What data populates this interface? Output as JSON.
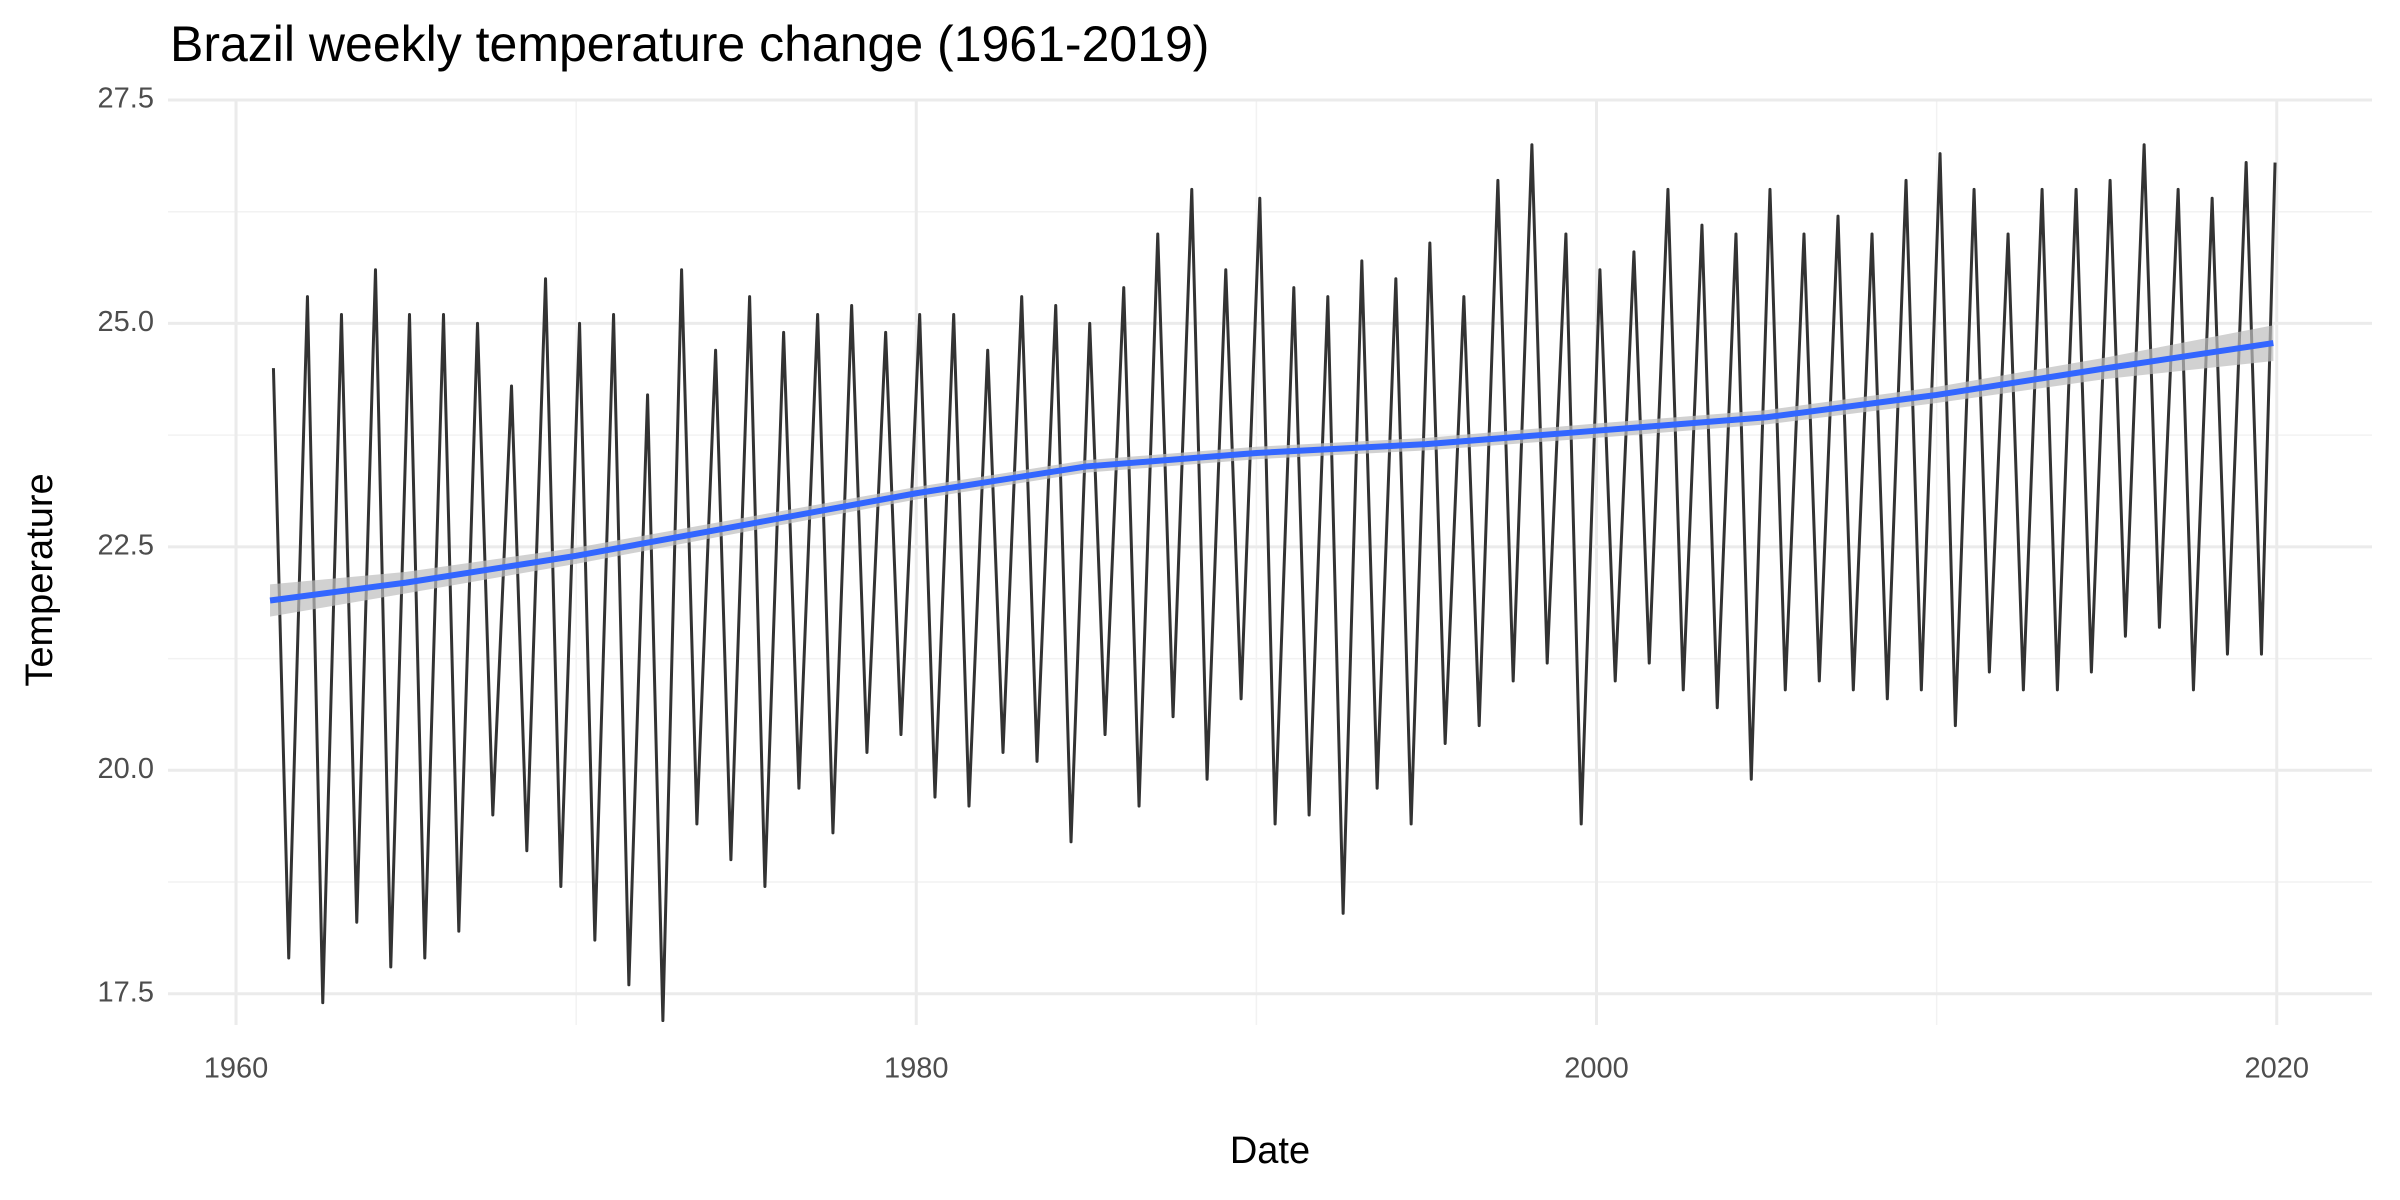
{
  "chart_data": {
    "type": "line",
    "title": "Brazil weekly temperature change (1961-2019)",
    "x_label": "Date",
    "y_label": "Temperature",
    "xlim": [
      1958,
      2022.8
    ],
    "ylim": [
      17.15,
      27.5
    ],
    "xticks": [
      1960,
      1980,
      2000,
      2020
    ],
    "yticks": [
      17.5,
      20.0,
      22.5,
      25.0,
      27.5
    ],
    "xminor": [
      1970,
      1990,
      2010
    ],
    "yminor": [
      18.75,
      21.25,
      23.75,
      26.25
    ],
    "grid": true,
    "series": [
      {
        "color": "#333333",
        "x": [
          1961.1,
          1961.55,
          1962.1,
          1962.55,
          1963.1,
          1963.55,
          1964.1,
          1964.55,
          1965.1,
          1965.55,
          1966.1,
          1966.55,
          1967.1,
          1967.55,
          1968.1,
          1968.55,
          1969.1,
          1969.55,
          1970.1,
          1970.55,
          1971.1,
          1971.55,
          1972.1,
          1972.55,
          1973.1,
          1973.55,
          1974.1,
          1974.55,
          1975.1,
          1975.55,
          1976.1,
          1976.55,
          1977.1,
          1977.55,
          1978.1,
          1978.55,
          1979.1,
          1979.55,
          1980.1,
          1980.55,
          1981.1,
          1981.55,
          1982.1,
          1982.55,
          1983.1,
          1983.55,
          1984.1,
          1984.55,
          1985.1,
          1985.55,
          1986.1,
          1986.55,
          1987.1,
          1987.55,
          1988.1,
          1988.55,
          1989.1,
          1989.55,
          1990.1,
          1990.55,
          1991.1,
          1991.55,
          1992.1,
          1992.55,
          1993.1,
          1993.55,
          1994.1,
          1994.55,
          1995.1,
          1995.55,
          1996.1,
          1996.55,
          1997.1,
          1997.55,
          1998.1,
          1998.55,
          1999.1,
          1999.55,
          2000.1,
          2000.55,
          2001.1,
          2001.55,
          2002.1,
          2002.55,
          2003.1,
          2003.55,
          2004.1,
          2004.55,
          2005.1,
          2005.55,
          2006.1,
          2006.55,
          2007.1,
          2007.55,
          2008.1,
          2008.55,
          2009.1,
          2009.55,
          2010.1,
          2010.55,
          2011.1,
          2011.55,
          2012.1,
          2012.55,
          2013.1,
          2013.55,
          2014.1,
          2014.55,
          2015.1,
          2015.55,
          2016.1,
          2016.55,
          2017.1,
          2017.55,
          2018.1,
          2018.55,
          2019.1,
          2019.55,
          2019.95
        ],
        "values": [
          24.5,
          17.9,
          25.3,
          17.4,
          25.1,
          18.3,
          25.6,
          17.8,
          25.1,
          17.9,
          25.1,
          18.2,
          25.0,
          19.5,
          24.3,
          19.1,
          25.5,
          18.7,
          25.0,
          18.1,
          25.1,
          17.6,
          24.2,
          17.2,
          25.6,
          19.4,
          24.7,
          19.0,
          25.3,
          18.7,
          24.9,
          19.8,
          25.1,
          19.3,
          25.2,
          20.2,
          24.9,
          20.4,
          25.1,
          19.7,
          25.1,
          19.6,
          24.7,
          20.2,
          25.3,
          20.1,
          25.2,
          19.2,
          25.0,
          20.4,
          25.4,
          19.6,
          26.0,
          20.6,
          26.5,
          19.9,
          25.6,
          20.8,
          26.4,
          19.4,
          25.4,
          19.5,
          25.3,
          18.4,
          25.7,
          19.8,
          25.5,
          19.4,
          25.9,
          20.3,
          25.3,
          20.5,
          26.6,
          21.0,
          27.0,
          21.2,
          26.0,
          19.4,
          25.6,
          21.0,
          25.8,
          21.2,
          26.5,
          20.9,
          26.1,
          20.7,
          26.0,
          19.9,
          26.5,
          20.9,
          26.0,
          21.0,
          26.2,
          20.9,
          26.0,
          20.8,
          26.6,
          20.9,
          26.9,
          20.5,
          26.5,
          21.1,
          26.0,
          20.9,
          26.5,
          20.9,
          26.5,
          21.1,
          26.6,
          21.5,
          27.0,
          21.6,
          26.5,
          20.9,
          26.4,
          21.3,
          26.8,
          21.3,
          26.8
        ]
      },
      {
        "color": "#3366ff",
        "band_color": "#bdbdbd",
        "x": [
          1961,
          1965,
          1970,
          1975,
          1980,
          1985,
          1990,
          1995,
          2000,
          2005,
          2010,
          2015,
          2019.9
        ],
        "values": [
          21.9,
          22.1,
          22.4,
          22.75,
          23.1,
          23.4,
          23.55,
          23.65,
          23.8,
          23.95,
          24.2,
          24.5,
          24.78
        ],
        "lower": [
          21.72,
          21.98,
          22.31,
          22.67,
          23.03,
          23.33,
          23.48,
          23.58,
          23.72,
          23.87,
          24.11,
          24.38,
          24.58
        ],
        "upper": [
          22.08,
          22.22,
          22.49,
          22.83,
          23.17,
          23.47,
          23.62,
          23.72,
          23.88,
          24.03,
          24.29,
          24.62,
          24.98
        ]
      }
    ]
  }
}
